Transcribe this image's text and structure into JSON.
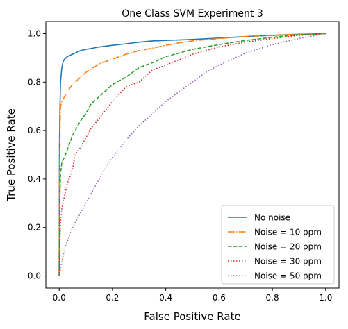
{
  "chart_data": {
    "type": "line",
    "title": "One Class SVM Experiment 3",
    "xlabel": "False Positive Rate",
    "ylabel": "True Positive Rate",
    "xlim": [
      -0.05,
      1.05
    ],
    "ylim": [
      -0.05,
      1.05
    ],
    "xticks": [
      "0.0",
      "0.2",
      "0.4",
      "0.6",
      "0.8",
      "1.0"
    ],
    "yticks": [
      "0.0",
      "0.2",
      "0.4",
      "0.6",
      "0.8",
      "1.0"
    ],
    "grid": false,
    "legend_position": "lower right",
    "series": [
      {
        "name": "No noise",
        "color": "#1f77b4",
        "dash": "solid",
        "x": [
          0,
          0.001,
          0.003,
          0.005,
          0.01,
          0.015,
          0.02,
          0.03,
          0.05,
          0.08,
          0.1,
          0.15,
          0.2,
          0.25,
          0.3,
          0.35,
          0.4,
          0.5,
          0.6,
          0.7,
          0.8,
          0.9,
          1.0
        ],
        "y": [
          0,
          0.55,
          0.7,
          0.8,
          0.86,
          0.885,
          0.895,
          0.905,
          0.915,
          0.93,
          0.935,
          0.945,
          0.952,
          0.958,
          0.965,
          0.97,
          0.972,
          0.976,
          0.982,
          0.988,
          0.993,
          0.997,
          1.0
        ]
      },
      {
        "name": "Noise = 10 ppm",
        "color": "#ff7f0e",
        "dash": "dashdot",
        "x": [
          0,
          0.001,
          0.003,
          0.005,
          0.01,
          0.02,
          0.03,
          0.05,
          0.08,
          0.1,
          0.15,
          0.2,
          0.25,
          0.3,
          0.35,
          0.4,
          0.45,
          0.5,
          0.6,
          0.7,
          0.8,
          0.9,
          1.0
        ],
        "y": [
          0,
          0.4,
          0.6,
          0.7,
          0.72,
          0.74,
          0.76,
          0.79,
          0.82,
          0.84,
          0.875,
          0.895,
          0.915,
          0.93,
          0.94,
          0.952,
          0.962,
          0.97,
          0.98,
          0.988,
          0.994,
          0.998,
          1.0
        ]
      },
      {
        "name": "Noise = 20 ppm",
        "color": "#2ca02c",
        "dash": "dashed",
        "x": [
          0,
          0.002,
          0.005,
          0.01,
          0.02,
          0.03,
          0.05,
          0.08,
          0.1,
          0.12,
          0.15,
          0.2,
          0.25,
          0.3,
          0.35,
          0.4,
          0.45,
          0.5,
          0.6,
          0.7,
          0.8,
          0.9,
          1.0
        ],
        "y": [
          0,
          0.3,
          0.42,
          0.47,
          0.49,
          0.52,
          0.58,
          0.64,
          0.67,
          0.71,
          0.74,
          0.79,
          0.82,
          0.86,
          0.88,
          0.905,
          0.92,
          0.935,
          0.955,
          0.972,
          0.985,
          0.995,
          1.0
        ]
      },
      {
        "name": "Noise = 30 ppm",
        "color": "#d62728",
        "dash": "dotted",
        "x": [
          0,
          0.003,
          0.005,
          0.01,
          0.02,
          0.03,
          0.05,
          0.06,
          0.08,
          0.1,
          0.12,
          0.15,
          0.2,
          0.25,
          0.3,
          0.35,
          0.4,
          0.5,
          0.6,
          0.7,
          0.8,
          0.9,
          1.0
        ],
        "y": [
          0,
          0.15,
          0.22,
          0.28,
          0.33,
          0.38,
          0.44,
          0.5,
          0.53,
          0.57,
          0.61,
          0.65,
          0.72,
          0.78,
          0.8,
          0.85,
          0.87,
          0.915,
          0.945,
          0.965,
          0.98,
          0.993,
          1.0
        ]
      },
      {
        "name": "Noise = 50 ppm",
        "color": "#9467bd",
        "dash": "dotted",
        "x": [
          0,
          0.01,
          0.02,
          0.03,
          0.05,
          0.08,
          0.1,
          0.12,
          0.15,
          0.17,
          0.2,
          0.25,
          0.3,
          0.35,
          0.4,
          0.45,
          0.5,
          0.55,
          0.6,
          0.7,
          0.8,
          0.9,
          1.0
        ],
        "y": [
          0,
          0.06,
          0.11,
          0.14,
          0.2,
          0.26,
          0.3,
          0.34,
          0.4,
          0.44,
          0.49,
          0.56,
          0.62,
          0.67,
          0.72,
          0.76,
          0.8,
          0.84,
          0.87,
          0.92,
          0.955,
          0.98,
          1.0
        ]
      }
    ]
  }
}
